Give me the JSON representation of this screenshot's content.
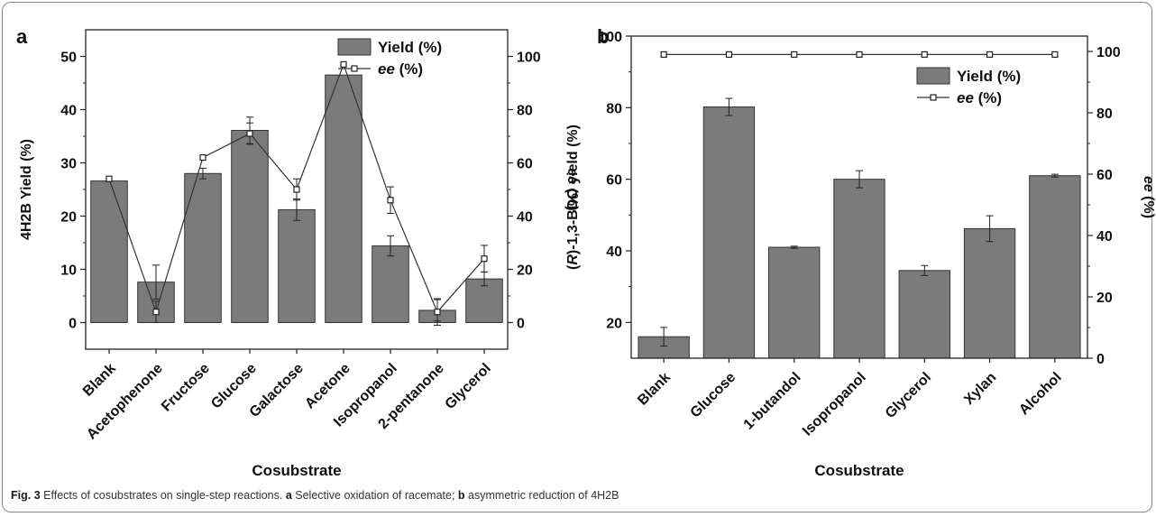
{
  "figure": {
    "caption": {
      "label": "Fig. 3",
      "text_1": "Effects of cosubstrates on single-step reactions.",
      "panel_a": "a",
      "text_2": "Selective oxidation of racemate;",
      "panel_b": "b",
      "text_3": "asymmetric reduction of 4H2B"
    }
  },
  "chart_data": [
    {
      "panel": "a",
      "type": "bar",
      "categories": [
        "Blank",
        "Acetophenone",
        "Fructose",
        "Glucose",
        "Galactose",
        "Acetone",
        "Isopropanol",
        "2-pentanone",
        "Glycerol"
      ],
      "series": [
        {
          "name": "Yield (%)",
          "type": "bar",
          "axis": "left",
          "values": [
            26.6,
            7.6,
            28.0,
            36.1,
            21.2,
            46.5,
            14.4,
            2.3,
            8.2
          ],
          "errors": [
            0,
            3.2,
            1.0,
            2.5,
            2.0,
            0,
            1.9,
            2.0,
            1.3
          ]
        },
        {
          "name": "ee (%)",
          "type": "line",
          "axis": "right",
          "values": [
            54,
            4,
            62,
            71,
            50,
            97,
            46,
            4,
            24
          ],
          "errors": [
            0,
            4,
            0,
            4,
            4,
            0,
            5,
            5,
            5
          ]
        }
      ],
      "xlabel": "Cosubstrate",
      "ylabel": "4H2B Yield (%)",
      "y2label": "ee (%)",
      "ylim": [
        -5,
        55
      ],
      "y2lim": [
        -10,
        110
      ],
      "yticks": [
        0,
        10,
        20,
        30,
        40,
        50
      ],
      "y2ticks": [
        0,
        20,
        40,
        60,
        80,
        100
      ],
      "legend": "top-right"
    },
    {
      "panel": "b",
      "type": "bar",
      "categories": [
        "Blank",
        "Glucose",
        "1-butandol",
        "Isopropanol",
        "Glycerol",
        "Xylan",
        "Alcohol"
      ],
      "series": [
        {
          "name": "Yield (%)",
          "type": "bar",
          "axis": "left",
          "values": [
            16.0,
            80.2,
            41.0,
            60.0,
            34.5,
            46.2,
            61.0
          ],
          "errors": [
            2.6,
            2.4,
            0.3,
            2.4,
            1.4,
            3.6,
            0.4
          ]
        },
        {
          "name": "ee (%)",
          "type": "line",
          "axis": "right",
          "values": [
            99,
            99,
            99,
            99,
            99,
            99,
            99
          ],
          "errors": [
            0,
            0,
            0,
            0,
            0,
            0,
            0
          ]
        }
      ],
      "xlabel": "Cosubstrate",
      "ylabel": "(R)-1,3-BDO yield (%)",
      "y2label": "ee (%)",
      "ylim": [
        10,
        100
      ],
      "y2lim": [
        0,
        105
      ],
      "yticks": [
        20,
        40,
        60,
        80,
        100
      ],
      "y2ticks": [
        0,
        20,
        40,
        60,
        80,
        100
      ],
      "legend": "top-right"
    }
  ]
}
